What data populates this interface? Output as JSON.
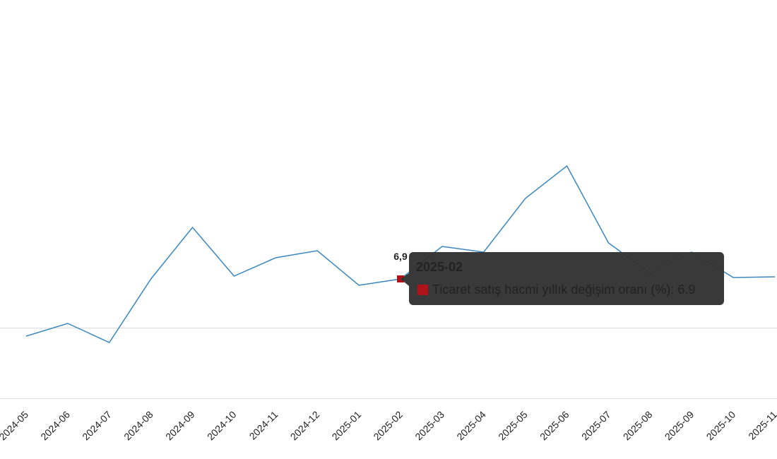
{
  "chart_data": {
    "type": "line",
    "categories": [
      "2024-05",
      "2024-06",
      "2024-07",
      "2024-08",
      "2024-09",
      "2024-10",
      "2024-11",
      "2024-12",
      "2025-01",
      "2025-02",
      "2025-03",
      "2025-04",
      "2025-05",
      "2025-06",
      "2025-07",
      "2025-08",
      "2025-09",
      "2025-10",
      "2025-11"
    ],
    "series": [
      {
        "name": "Ticaret satış hacmi yıllık değişim oranı (%)",
        "color": "#3a87c0",
        "values": [
          -1.2,
          0.6,
          -2.1,
          6.9,
          14.2,
          7.3,
          9.9,
          10.9,
          6.0,
          6.9,
          11.5,
          10.7,
          18.3,
          22.9,
          12.0,
          7.7,
          10.7,
          7.1,
          7.2
        ],
        "value_labels": [
          null,
          null,
          null,
          null,
          null,
          null,
          null,
          null,
          null,
          "6,9",
          null,
          null,
          null,
          null,
          null,
          null,
          null,
          null,
          null
        ]
      }
    ],
    "ylim": [
      -10,
      46
    ],
    "yticks": [
      0
    ],
    "grid": true,
    "highlight_color": "#b0121b",
    "tooltip": {
      "title": "2025-02",
      "label": "Ticaret satış hacmi yıllık değişim oranı (%): 6.9"
    }
  }
}
